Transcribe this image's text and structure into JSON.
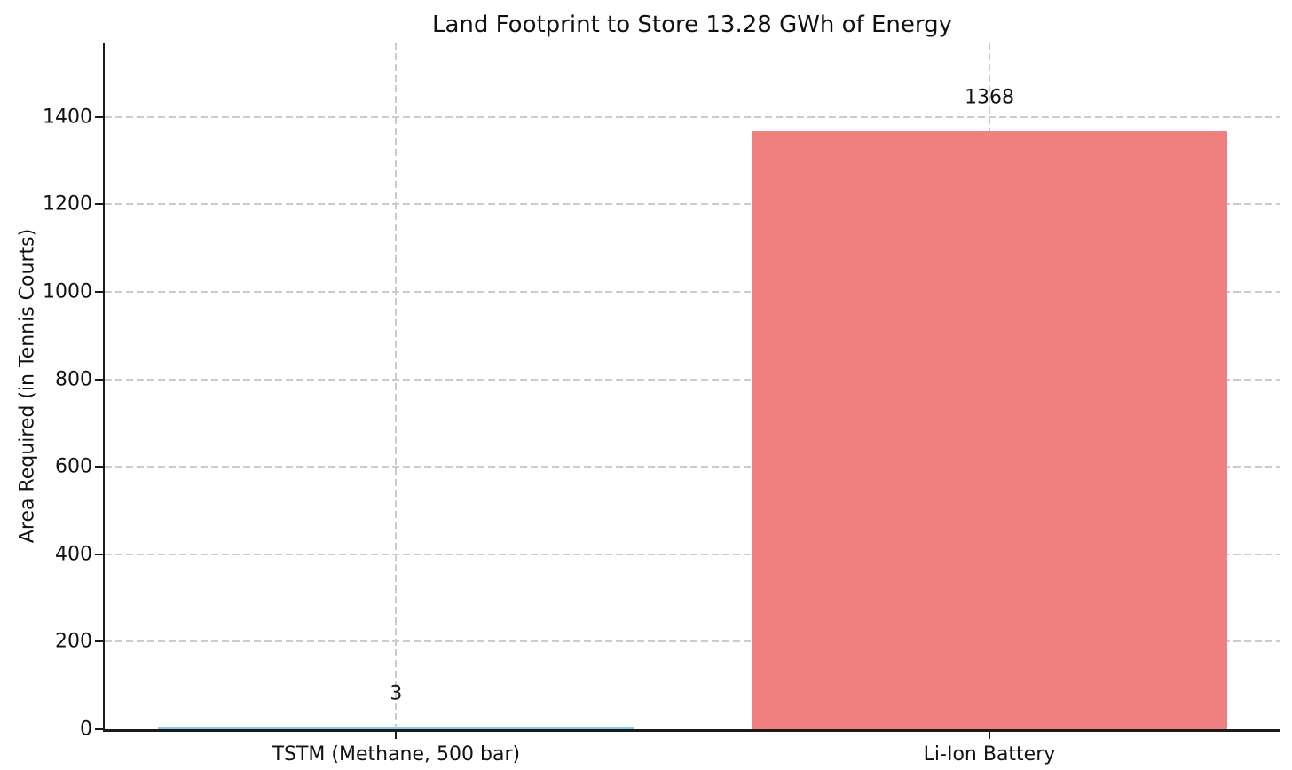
{
  "chart_data": {
    "type": "bar",
    "title": "Land Footprint to Store 13.28 GWh of Energy",
    "xlabel": "",
    "ylabel": "Area Required (in Tennis Courts)",
    "categories": [
      "TSTM (Methane, 500 bar)",
      "Li-Ion Battery"
    ],
    "values": [
      3,
      1368
    ],
    "value_labels": [
      "3",
      "1368"
    ],
    "bar_colors": [
      "#87CEEB",
      "#F08080"
    ],
    "yticks": [
      0,
      200,
      400,
      600,
      800,
      1000,
      1200,
      1400
    ],
    "ylim": [
      0,
      1570
    ],
    "grid": "dashed gridlines on both axes",
    "legend_position": "none",
    "layout": {
      "bar_center_fractions": [
        0.248,
        0.753
      ],
      "bar_width_fraction": 0.405
    }
  },
  "colors": {
    "background": "#ffffff",
    "gridline": "#cccccc",
    "axis": "#1a1a1a",
    "text": "#111111",
    "bar_tstm": "#87CEEB",
    "bar_liion": "#F08080"
  }
}
